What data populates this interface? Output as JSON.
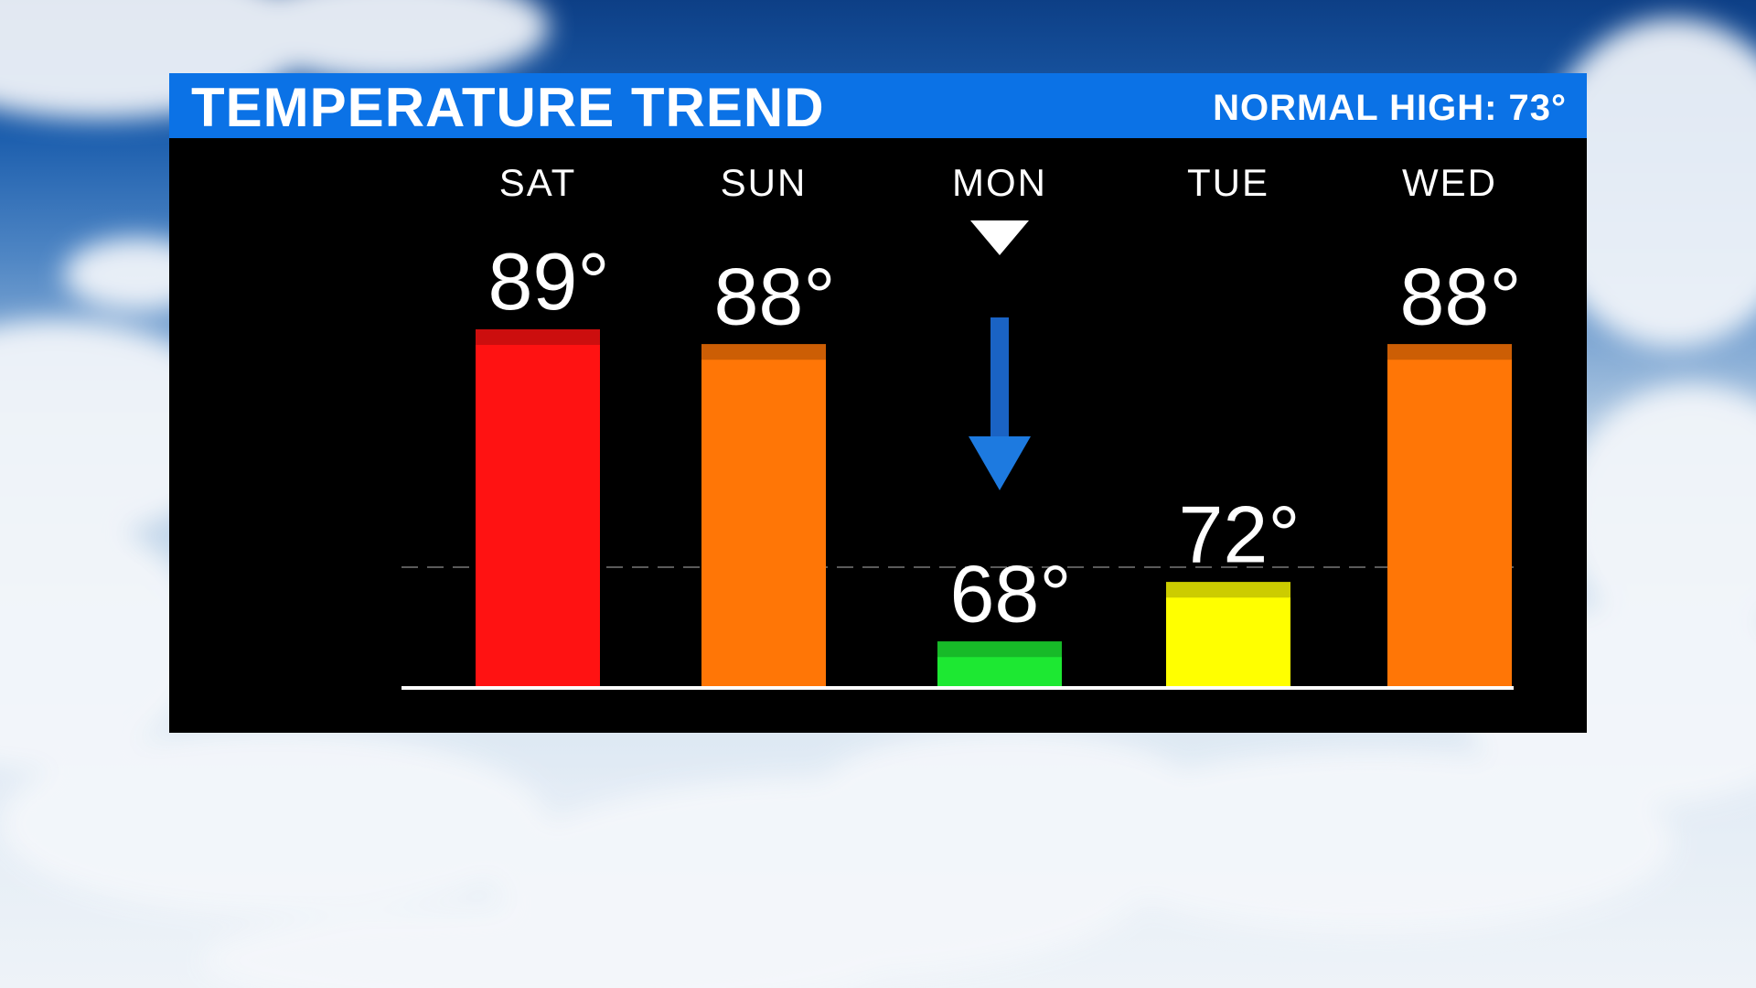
{
  "header": {
    "title": "TEMPERATURE TREND",
    "normal_high": "NORMAL HIGH: 73°"
  },
  "icons": {
    "marker": "down-triangle-icon",
    "trend": "down-arrow-icon"
  },
  "colors": {
    "header_blue": "#0b72e6",
    "hot_red": "#ff1212",
    "warm_orange": "#ff7606",
    "mild_yellow": "#ffff00",
    "cool_green": "#1de832",
    "arrow_blue": "#1d7ae0"
  },
  "chart_data": {
    "type": "bar",
    "categories": [
      "SAT",
      "SUN",
      "MON",
      "TUE",
      "WED"
    ],
    "values": [
      89,
      88,
      68,
      72,
      88
    ],
    "labels": [
      "89°",
      "88°",
      "68°",
      "72°",
      "88°"
    ],
    "bar_colors": [
      "#ff1212",
      "#ff7606",
      "#1de832",
      "#ffff00",
      "#ff7606"
    ],
    "reference_line": {
      "value": 73,
      "style": "dashed"
    },
    "highlight_category": "MON",
    "ylim": [
      65,
      90
    ],
    "grid": false,
    "title": "TEMPERATURE TREND",
    "xlabel": "",
    "ylabel": ""
  }
}
